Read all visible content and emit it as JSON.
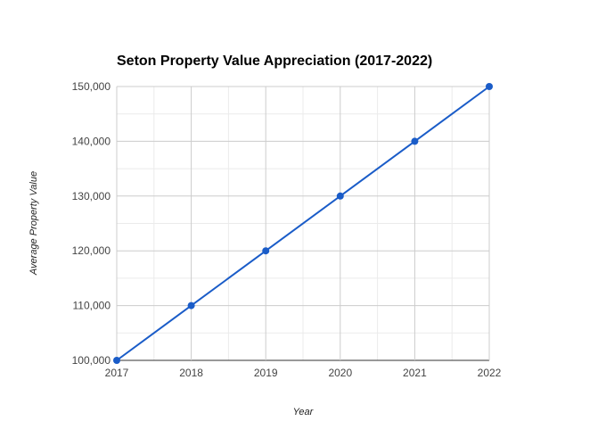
{
  "chart_data": {
    "type": "line",
    "title": "Seton Property Value Appreciation (2017-2022)",
    "xlabel": "Year",
    "ylabel": "Average Property Value",
    "x": [
      "2017",
      "2018",
      "2019",
      "2020",
      "2021",
      "2022"
    ],
    "series": [
      {
        "values": [
          100000,
          110000,
          120000,
          130000,
          140000,
          150000
        ],
        "color": "#1a5cc8"
      }
    ],
    "ylim": [
      100000,
      150000
    ],
    "y_ticks": [
      100000,
      110000,
      120000,
      130000,
      140000,
      150000
    ],
    "y_tick_labels": [
      "100,000",
      "110,000",
      "120,000",
      "130,000",
      "140,000",
      "150,000"
    ],
    "grid": true,
    "minor_grid": true,
    "legend": "none"
  }
}
